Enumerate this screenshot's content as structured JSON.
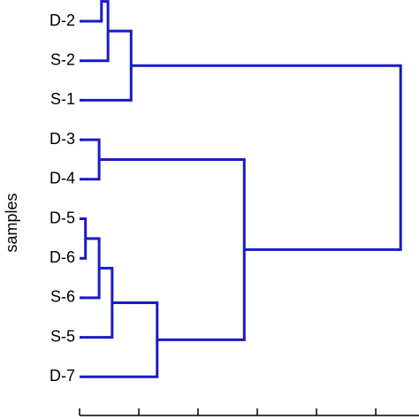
{
  "chart_data": {
    "type": "dendrogram",
    "y_label": "samples",
    "color": "#1a1ac8",
    "xlim": [
      0,
      5.73
    ],
    "xticks": [
      0,
      1,
      2,
      3,
      4,
      5
    ],
    "tree": {
      "height": 5.42,
      "children": [
        {
          "height": 0.87,
          "children": [
            {
              "height": 0.48,
              "children": [
                {
                  "height": 0.37,
                  "children": [
                    {
                      "label": null
                    },
                    {
                      "label": "D-2"
                    }
                  ]
                },
                {
                  "label": "S-2"
                }
              ]
            },
            {
              "label": "S-1"
            }
          ]
        },
        {
          "height": 2.78,
          "children": [
            {
              "height": 0.33,
              "children": [
                {
                  "label": "D-3"
                },
                {
                  "label": "D-4"
                }
              ]
            },
            {
              "height": 1.31,
              "children": [
                {
                  "height": 0.55,
                  "children": [
                    {
                      "height": 0.33,
                      "children": [
                        {
                          "height": 0.1,
                          "children": [
                            {
                              "label": "D-5"
                            },
                            {
                              "label": "D-6"
                            }
                          ]
                        },
                        {
                          "label": "S-6"
                        }
                      ]
                    },
                    {
                      "label": "S-5"
                    }
                  ]
                },
                {
                  "label": "D-7"
                }
              ]
            }
          ]
        }
      ]
    }
  }
}
